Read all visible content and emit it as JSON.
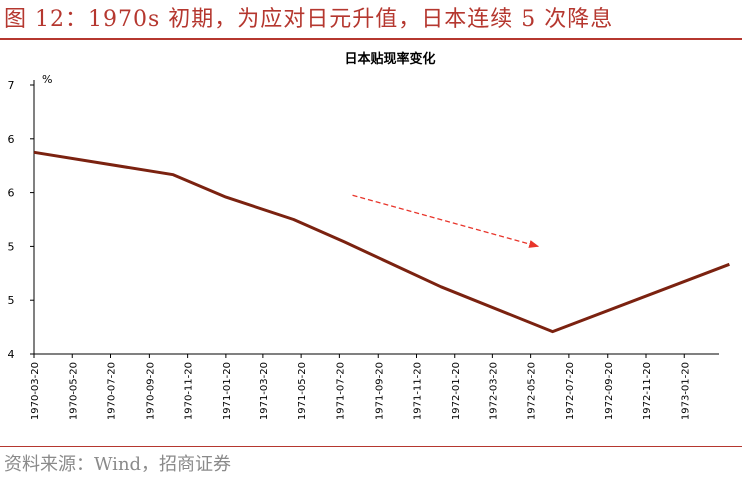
{
  "header": {
    "title": "图 12：1970s 初期，为应对日元升值，日本连续 5 次降息"
  },
  "footer": {
    "source": "资料来源：Wind，招商证券"
  },
  "colors": {
    "accent": "#b5372f",
    "series": "#7b2210",
    "arrow": "#e8352b"
  },
  "chart_data": {
    "type": "line",
    "title": "日本贴现率变化",
    "ylabel": "%",
    "xlabel": "",
    "ylim": [
      4,
      7
    ],
    "y_tick_labels": [
      "4",
      "5",
      "5",
      "6",
      "6",
      "7"
    ],
    "x_tick_labels": [
      "1970-03-20",
      "1970-05-20",
      "1970-07-20",
      "1970-09-20",
      "1970-11-20",
      "1971-01-20",
      "1971-03-20",
      "1971-05-20",
      "1971-07-20",
      "1971-09-20",
      "1971-11-20",
      "1972-01-20",
      "1972-03-20",
      "1972-05-20",
      "1972-07-20",
      "1972-09-20",
      "1972-11-20",
      "1973-01-20"
    ],
    "series": [
      {
        "x": [
          "1970-03-20",
          "1970-10-28",
          "1971-01-20",
          "1971-05-08",
          "1971-07-28",
          "1971-12-29",
          "1972-06-24",
          "1973-04-02"
        ],
        "y": [
          6.25,
          6.0,
          5.75,
          5.5,
          5.25,
          4.75,
          4.25,
          5.0
        ]
      }
    ],
    "annotations": [
      {
        "type": "dashed-arrow",
        "from": [
          "1971-08-10",
          5.77
        ],
        "to": [
          "1972-06-01",
          5.2
        ]
      }
    ],
    "grid": false,
    "legend": "none"
  }
}
